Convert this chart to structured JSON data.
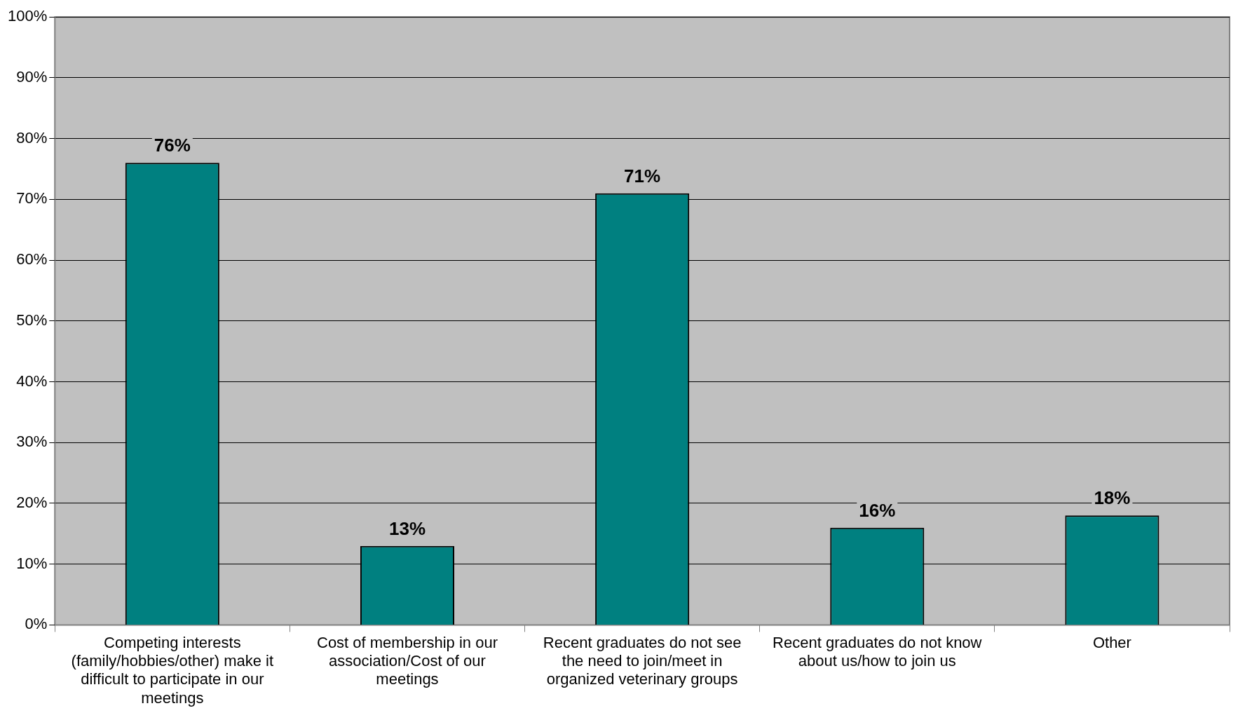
{
  "chart_data": {
    "type": "bar",
    "categories": [
      "Competing interests (family/hobbies/other) make it difficult to participate in our meetings",
      "Cost of membership in our association/Cost of our meetings",
      "Recent graduates do not see the need to join/meet in organized veterinary groups",
      "Recent graduates do not know about us/how to join us",
      "Other"
    ],
    "values": [
      76,
      13,
      71,
      16,
      18
    ],
    "color": "#008080",
    "value_labels": [
      "76%",
      "13%",
      "71%",
      "16%",
      "18%"
    ],
    "ylim": [
      0,
      100
    ],
    "yticks": [
      {
        "value": 0,
        "label": "0%"
      },
      {
        "value": 10,
        "label": "10%"
      },
      {
        "value": 20,
        "label": "20%"
      },
      {
        "value": 30,
        "label": "30%"
      },
      {
        "value": 40,
        "label": "40%"
      },
      {
        "value": 50,
        "label": "50%"
      },
      {
        "value": 60,
        "label": "60%"
      },
      {
        "value": 70,
        "label": "70%"
      },
      {
        "value": 80,
        "label": "80%"
      },
      {
        "value": 90,
        "label": "90%"
      },
      {
        "value": 100,
        "label": "100%"
      }
    ],
    "grid": "y",
    "legend": false
  }
}
